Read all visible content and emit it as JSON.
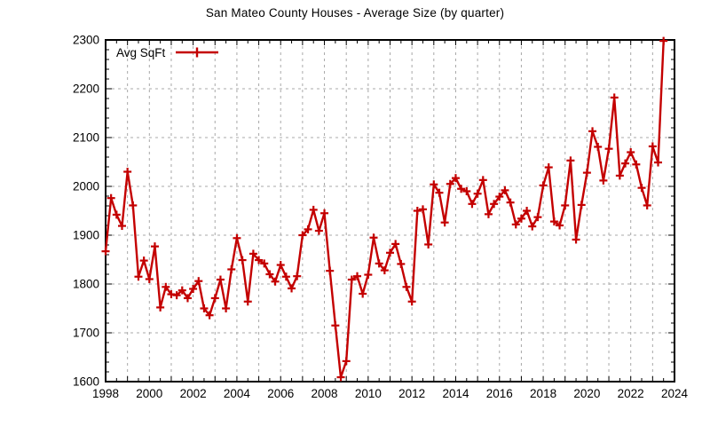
{
  "header": {
    "title": "San Mateo County Houses - Average Size (by quarter)"
  },
  "legend": {
    "label": "Avg SqFt"
  },
  "colors": {
    "background": "#ffffff",
    "series": "#c40000",
    "grid": "#a8a8a8",
    "axis": "#000000",
    "text": "#000000"
  },
  "chart_data": {
    "type": "line",
    "title": "San Mateo County Houses - Average Size (by quarter)",
    "xlabel": "",
    "ylabel": "",
    "legend_entries": [
      "Avg SqFt"
    ],
    "legend_position": "top-left-inside",
    "grid": "on",
    "marker": "plus",
    "xlim": [
      1998,
      2024
    ],
    "ylim": [
      1600,
      2300
    ],
    "x_tick_labels": [
      "1998",
      "2000",
      "2002",
      "2004",
      "2006",
      "2008",
      "2010",
      "2012",
      "2014",
      "2016",
      "2018",
      "2020",
      "2022",
      "2024"
    ],
    "y_tick_labels": [
      "1600",
      "1700",
      "1800",
      "1900",
      "2000",
      "2100",
      "2200",
      "2300"
    ],
    "x_label_interval": 2,
    "x_grid_interval": 1,
    "y_grid_interval": 100,
    "x_minor_tick_interval": 0.5,
    "y_minor_tick_interval": 20,
    "x_unit": "year, quarterly samples",
    "series": [
      {
        "name": "Avg SqFt",
        "color": "#c40000",
        "x_start": 1998.0,
        "x_step": 0.25,
        "values": [
          1867,
          1976,
          1942,
          1919,
          2030,
          1961,
          1815,
          1848,
          1810,
          1877,
          1752,
          1794,
          1779,
          1777,
          1787,
          1771,
          1790,
          1806,
          1750,
          1736,
          1771,
          1809,
          1750,
          1830,
          1894,
          1849,
          1764,
          1862,
          1849,
          1842,
          1820,
          1805,
          1839,
          1815,
          1791,
          1816,
          1900,
          1912,
          1952,
          1909,
          1945,
          1827,
          1715,
          1609,
          1642,
          1809,
          1816,
          1780,
          1819,
          1895,
          1842,
          1828,
          1864,
          1882,
          1841,
          1794,
          1764,
          1950,
          1953,
          1881,
          2004,
          1987,
          1926,
          2005,
          2017,
          1995,
          1990,
          1964,
          1985,
          2013,
          1943,
          1964,
          1979,
          1992,
          1967,
          1922,
          1934,
          1950,
          1918,
          1937,
          2002,
          2039,
          1928,
          1920,
          1961,
          2053,
          1891,
          1962,
          2028,
          2113,
          2081,
          2012,
          2077,
          2182,
          2022,
          2047,
          2070,
          2045,
          1997,
          1961,
          2082,
          2049,
          2298
        ]
      }
    ]
  }
}
